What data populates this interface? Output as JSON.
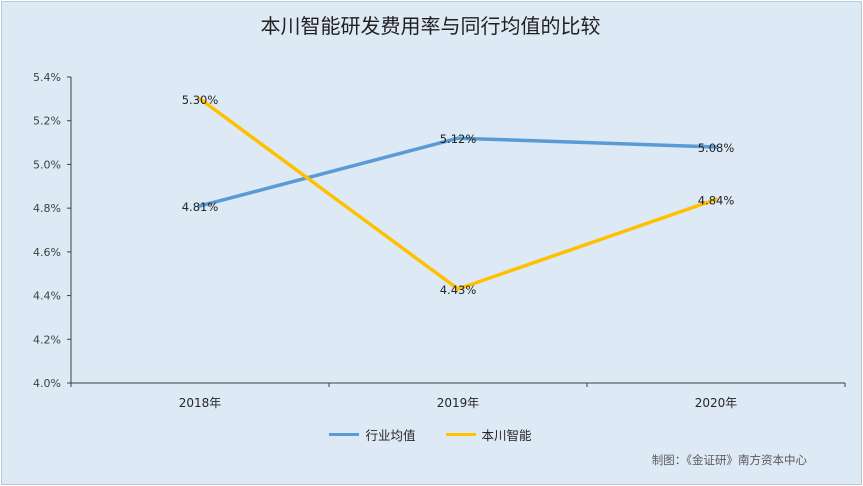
{
  "chart_data": {
    "type": "line",
    "title": "本川智能研发费用率与同行均值的比较",
    "categories": [
      "2018年",
      "2019年",
      "2020年"
    ],
    "series": [
      {
        "name": "行业均值",
        "values": [
          4.81,
          5.12,
          5.08
        ],
        "labels": [
          "4.81%",
          "5.12%",
          "5.08%"
        ],
        "color": "#5b9bd5"
      },
      {
        "name": "本川智能",
        "values": [
          5.3,
          4.43,
          4.84
        ],
        "labels": [
          "5.30%",
          "4.43%",
          "4.84%"
        ],
        "color": "#ffc000"
      }
    ],
    "ylim": [
      4.0,
      5.4
    ],
    "yticks": [
      4.0,
      4.2,
      4.4,
      4.6,
      4.8,
      5.0,
      5.2,
      5.4
    ],
    "ytick_labels": [
      "4.0%",
      "4.2%",
      "4.4%",
      "4.6%",
      "4.8%",
      "5.0%",
      "5.2%",
      "5.4%"
    ],
    "xlabel": "",
    "ylabel": "",
    "grid": false,
    "legend_position": "bottom"
  },
  "source_note": "制图：《金证研》南方资本中心",
  "colors": {
    "background": "#dde9f5"
  }
}
